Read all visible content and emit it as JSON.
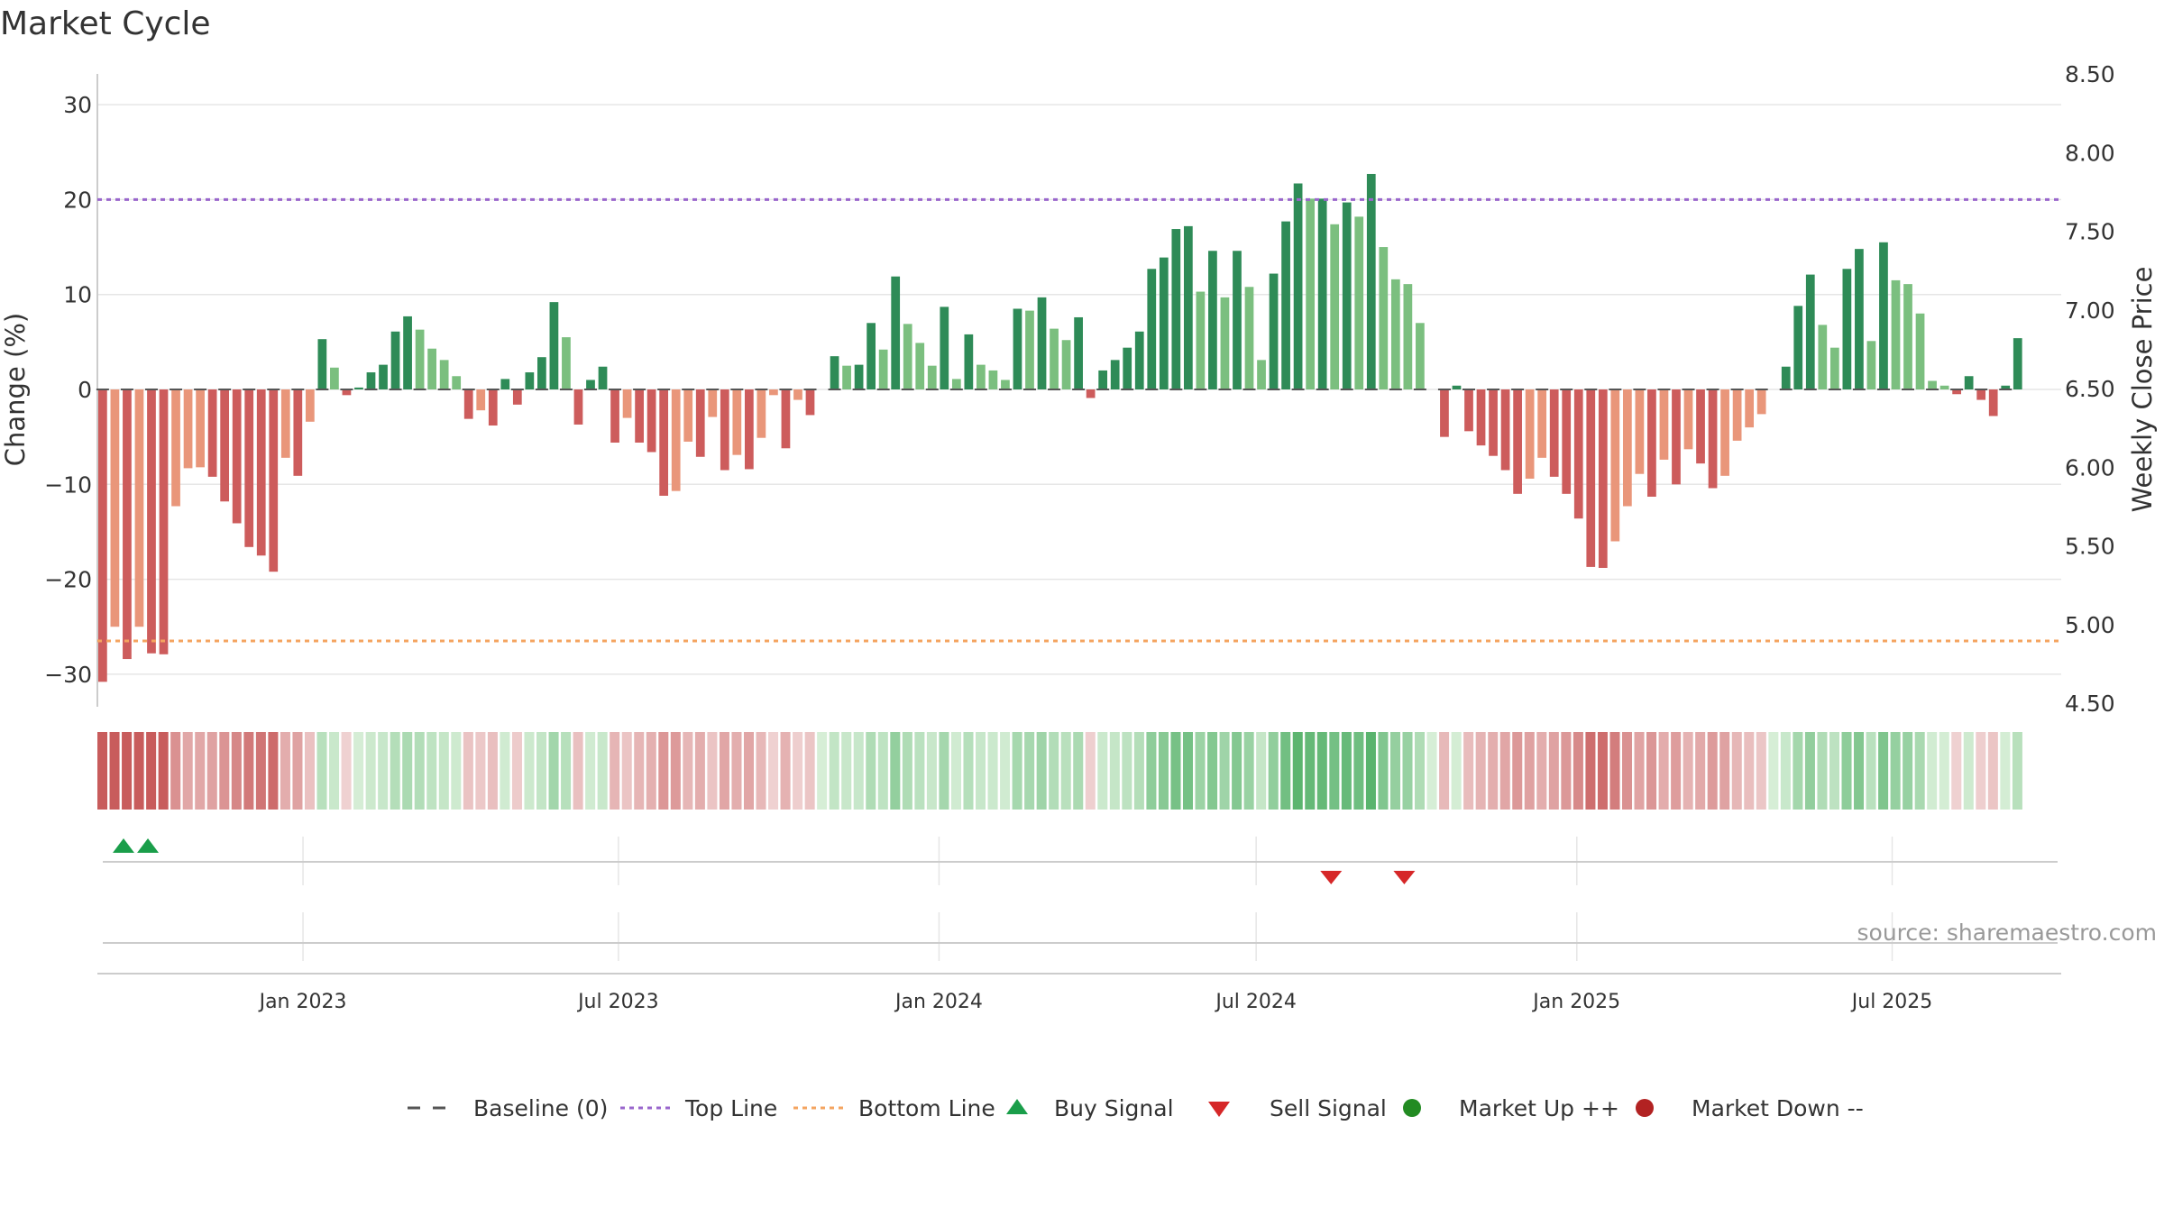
{
  "chart_data": {
    "type": "bar",
    "title": "Market Cycle",
    "ylabel": "Change (%)",
    "y2label": "Weekly Close Price",
    "ylim": [
      -33,
      33
    ],
    "y2lim": [
      4.5,
      8.5
    ],
    "yticks": [
      30,
      20,
      10,
      0,
      -10,
      -20,
      -30
    ],
    "ytick_labels": [
      "30",
      "20",
      "10",
      "0",
      "−10",
      "−20",
      "−30"
    ],
    "y2ticks": [
      8.5,
      8.0,
      7.5,
      7.0,
      6.5,
      6.0,
      5.5,
      5.0,
      4.5
    ],
    "y2tick_labels": [
      "8.50",
      "8.00",
      "7.50",
      "7.00",
      "6.50",
      "6.00",
      "5.50",
      "5.00",
      "4.50"
    ],
    "x_start": "2022-09-05",
    "x_end": "2025-10-06",
    "xticks": [
      {
        "date": "2023-01-01",
        "label": "Jan 2023"
      },
      {
        "date": "2023-07-01",
        "label": "Jul 2023"
      },
      {
        "date": "2024-01-01",
        "label": "Jan 2024"
      },
      {
        "date": "2024-07-01",
        "label": "Jul 2024"
      },
      {
        "date": "2025-01-01",
        "label": "Jan 2025"
      },
      {
        "date": "2025-07-01",
        "label": "Jul 2025"
      }
    ],
    "top_line": 20,
    "bottom_line": -26.5,
    "grid": true,
    "legend_position": "bottom",
    "week_start": "2022-09-05",
    "weekly_change": [
      -30.8,
      -25,
      -28.4,
      -25,
      -27.8,
      -27.9,
      -12.3,
      -8.3,
      -8.2,
      -9.2,
      -11.8,
      -14.1,
      -16.6,
      -17.5,
      -19.2,
      -7.2,
      -9.1,
      -3.4,
      5.3,
      2.3,
      -0.6,
      0.2,
      1.8,
      2.6,
      6.1,
      7.7,
      6.3,
      4.3,
      3.1,
      1.4,
      -3.1,
      -2.2,
      -3.8,
      1.1,
      -1.6,
      1.8,
      3.4,
      9.2,
      5.5,
      -3.7,
      1,
      2.4,
      -5.6,
      -3,
      -5.6,
      -6.6,
      -11.2,
      -10.7,
      -5.5,
      -7.1,
      -2.9,
      -8.5,
      -6.9,
      -8.4,
      -5.1,
      -0.6,
      -6.2,
      -1.1,
      -2.7,
      0,
      3.5,
      2.5,
      2.6,
      7,
      4.2,
      11.9,
      6.9,
      4.9,
      2.5,
      8.7,
      1.1,
      5.8,
      2.6,
      2,
      1,
      8.5,
      8.3,
      9.7,
      6.4,
      5.2,
      7.6,
      -0.9,
      2,
      3.1,
      4.4,
      6.1,
      12.7,
      13.9,
      16.9,
      17.2,
      10.3,
      14.6,
      9.7,
      14.6,
      10.8,
      3.1,
      12.2,
      17.7,
      21.7,
      20.1,
      20.1,
      17.4,
      19.7,
      18.2,
      22.7,
      15,
      11.6,
      11.1,
      7,
      0,
      -5,
      0.4,
      -4.4,
      -5.9,
      -7,
      -8.5,
      -11,
      -9.4,
      -7.2,
      -9.2,
      -11,
      -13.6,
      -18.7,
      -18.8,
      -16,
      -12.3,
      -8.9,
      -11.3,
      -7.4,
      -10,
      -6.3,
      -7.8,
      -10.4,
      -9.1,
      -5.4,
      -4,
      -2.6,
      0,
      2.4,
      8.8,
      12.1,
      6.8,
      4.4,
      12.7,
      14.8,
      5.1,
      15.5,
      11.5,
      11.1,
      8,
      0.9,
      0.4,
      -0.5,
      1.4,
      -1.1,
      -2.8,
      0.4,
      5.4
    ],
    "weekly_close_price": [],
    "buy_signal_dates": [
      "2022-09-20",
      "2022-10-04"
    ],
    "sell_signal_dates": [
      "2024-08-13",
      "2024-09-24"
    ],
    "market_up_dates": [],
    "market_down_dates": [],
    "colors": {
      "strong_up": "#2e8b57",
      "weak_up": "#7bbf7f",
      "strong_down": "#cd5c5c",
      "weak_down": "#e9967a",
      "top_line": "#9966cc",
      "bottom_line": "#f4a460",
      "buy_signal": "#1a9e4a",
      "sell_signal": "#d62728",
      "market_up": "#228b22",
      "market_down": "#b22222",
      "baseline": "#555555"
    }
  },
  "source_text": "source: sharemaestro.com",
  "legend": [
    {
      "key": "baseline",
      "label": "Baseline (0)"
    },
    {
      "key": "top_line",
      "label": "Top Line"
    },
    {
      "key": "bottom_line",
      "label": "Bottom Line"
    },
    {
      "key": "buy_signal",
      "label": "Buy Signal"
    },
    {
      "key": "sell_signal",
      "label": "Sell Signal"
    },
    {
      "key": "market_up",
      "label": "Market Up ++"
    },
    {
      "key": "market_down",
      "label": "Market Down --"
    }
  ]
}
